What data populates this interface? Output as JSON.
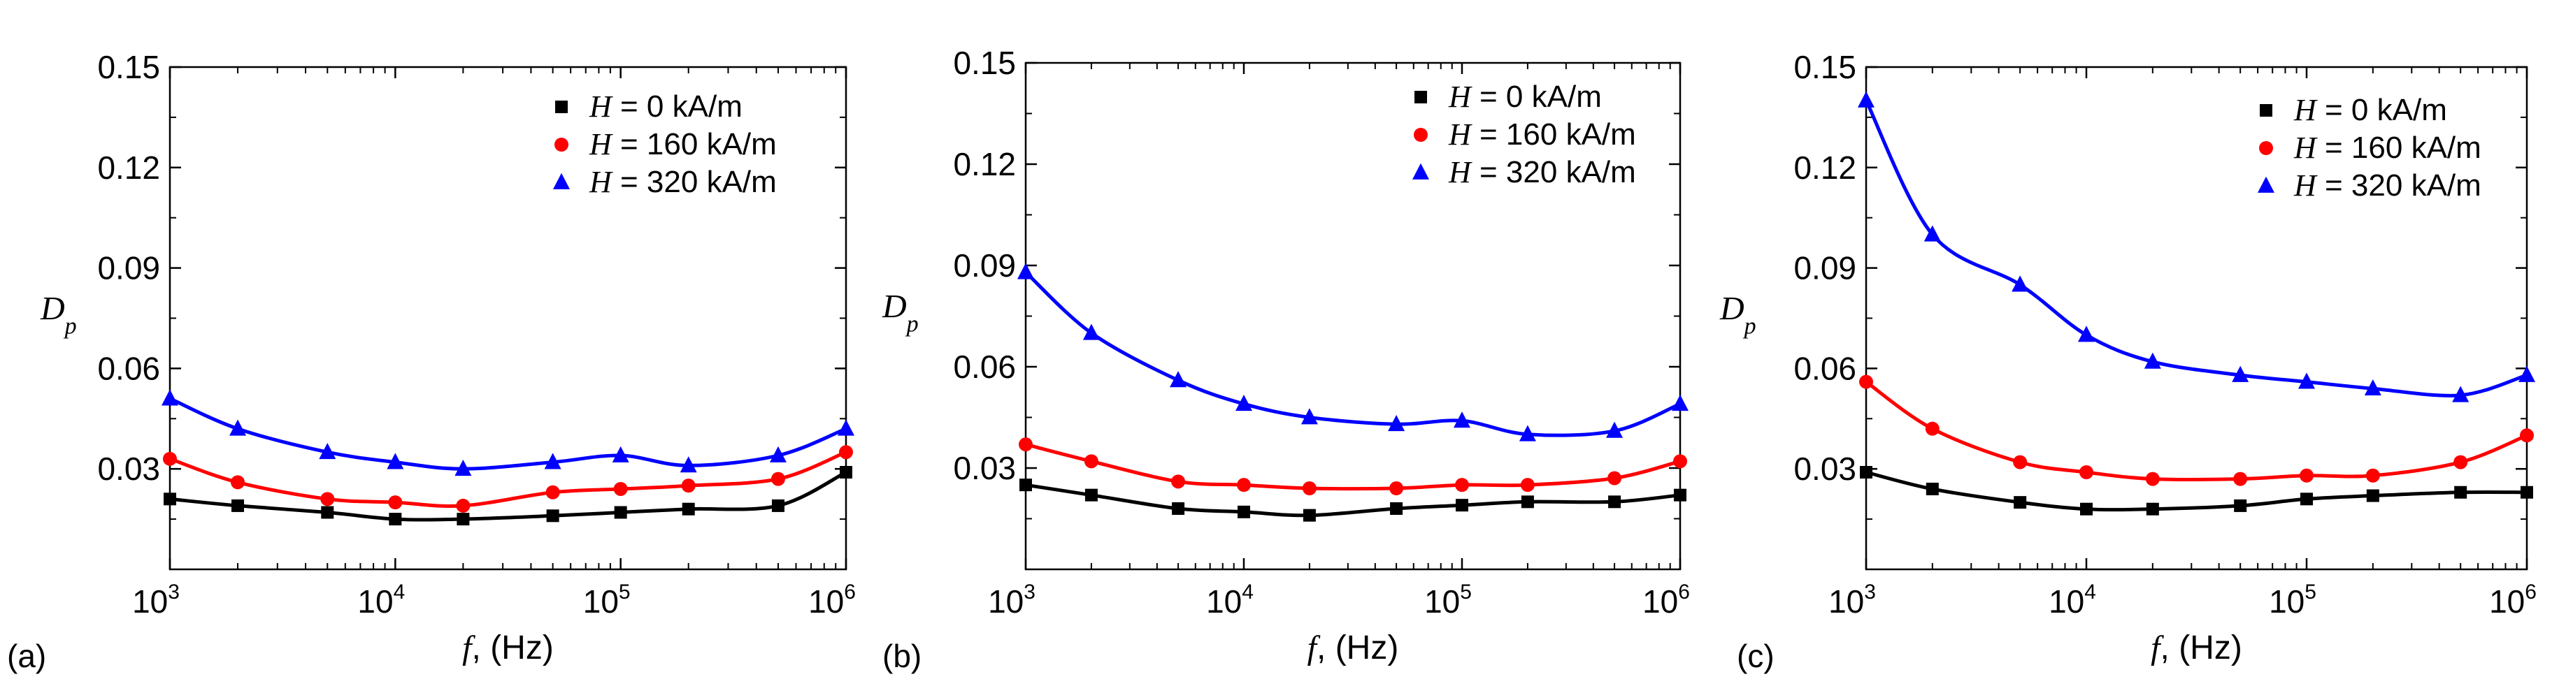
{
  "colors": {
    "H0": "#000000",
    "H160": "#ff0000",
    "H320": "#0000ff"
  },
  "legend": [
    {
      "symbol": "H",
      "text": " = 0 kA/m",
      "color": "#000000",
      "marker": "square"
    },
    {
      "symbol": "H",
      "text": " = 160 kA/m",
      "color": "#ff0000",
      "marker": "circle"
    },
    {
      "symbol": "H",
      "text": " = 320 kA/m",
      "color": "#0000ff",
      "marker": "triangle"
    }
  ],
  "axes": {
    "ylabel_main": "D",
    "ylabel_sub": "p",
    "xlabel_var": "f",
    "xlabel_unit": ", (Hz)",
    "ytick_labels": [
      "0.03",
      "0.06",
      "0.09",
      "0.12",
      "0.15"
    ],
    "xtick_base": "10",
    "xtick_exponents": [
      "3",
      "4",
      "5",
      "6"
    ]
  },
  "chart_data": [
    {
      "type": "scatter",
      "panel_label": "(a)",
      "xscale": "log",
      "xlim": [
        1000,
        1000000
      ],
      "ylim": [
        0.0,
        0.15
      ],
      "xlabel": "f, (Hz)",
      "ylabel": "Dp",
      "x": [
        1000,
        2000,
        5000,
        10000,
        20000,
        50000,
        100000,
        200000,
        500000,
        1000000
      ],
      "series": [
        {
          "name": "H = 0 kA/m",
          "values": [
            0.021,
            0.019,
            0.017,
            0.015,
            0.015,
            0.016,
            0.017,
            0.018,
            0.019,
            0.029
          ]
        },
        {
          "name": "H = 160 kA/m",
          "values": [
            0.033,
            0.026,
            0.021,
            0.02,
            0.019,
            0.023,
            0.024,
            0.025,
            0.027,
            0.035
          ]
        },
        {
          "name": "H = 320 kA/m",
          "values": [
            0.051,
            0.042,
            0.035,
            0.032,
            0.03,
            0.032,
            0.034,
            0.031,
            0.034,
            0.042
          ]
        }
      ]
    },
    {
      "type": "scatter",
      "panel_label": "(b)",
      "xscale": "log",
      "xlim": [
        1000,
        1000000
      ],
      "ylim": [
        0.0,
        0.15
      ],
      "xlabel": "f, (Hz)",
      "ylabel": "Dp",
      "x": [
        1000,
        2000,
        5000,
        10000,
        20000,
        50000,
        100000,
        200000,
        500000,
        1000000
      ],
      "series": [
        {
          "name": "H = 0 kA/m",
          "values": [
            0.025,
            0.022,
            0.018,
            0.017,
            0.016,
            0.018,
            0.019,
            0.02,
            0.02,
            0.022
          ]
        },
        {
          "name": "H = 160 kA/m",
          "values": [
            0.037,
            0.032,
            0.026,
            0.025,
            0.024,
            0.024,
            0.025,
            0.025,
            0.027,
            0.032
          ]
        },
        {
          "name": "H = 320 kA/m",
          "values": [
            0.088,
            0.07,
            0.056,
            0.049,
            0.045,
            0.043,
            0.044,
            0.04,
            0.041,
            0.049
          ]
        }
      ]
    },
    {
      "type": "scatter",
      "panel_label": "(c)",
      "xscale": "log",
      "xlim": [
        1000,
        1000000
      ],
      "ylim": [
        0.0,
        0.15
      ],
      "xlabel": "f, (Hz)",
      "ylabel": "Dp",
      "x": [
        1000,
        2000,
        5000,
        10000,
        20000,
        50000,
        100000,
        200000,
        500000,
        1000000
      ],
      "series": [
        {
          "name": "H = 0 kA/m",
          "values": [
            0.029,
            0.024,
            0.02,
            0.018,
            0.018,
            0.019,
            0.021,
            0.022,
            0.023,
            0.023
          ]
        },
        {
          "name": "H = 160 kA/m",
          "values": [
            0.056,
            0.042,
            0.032,
            0.029,
            0.027,
            0.027,
            0.028,
            0.028,
            0.032,
            0.04
          ]
        },
        {
          "name": "H = 320 kA/m",
          "values": [
            0.14,
            0.1,
            0.085,
            0.07,
            0.062,
            0.058,
            0.056,
            0.054,
            0.052,
            0.058
          ]
        }
      ]
    }
  ]
}
